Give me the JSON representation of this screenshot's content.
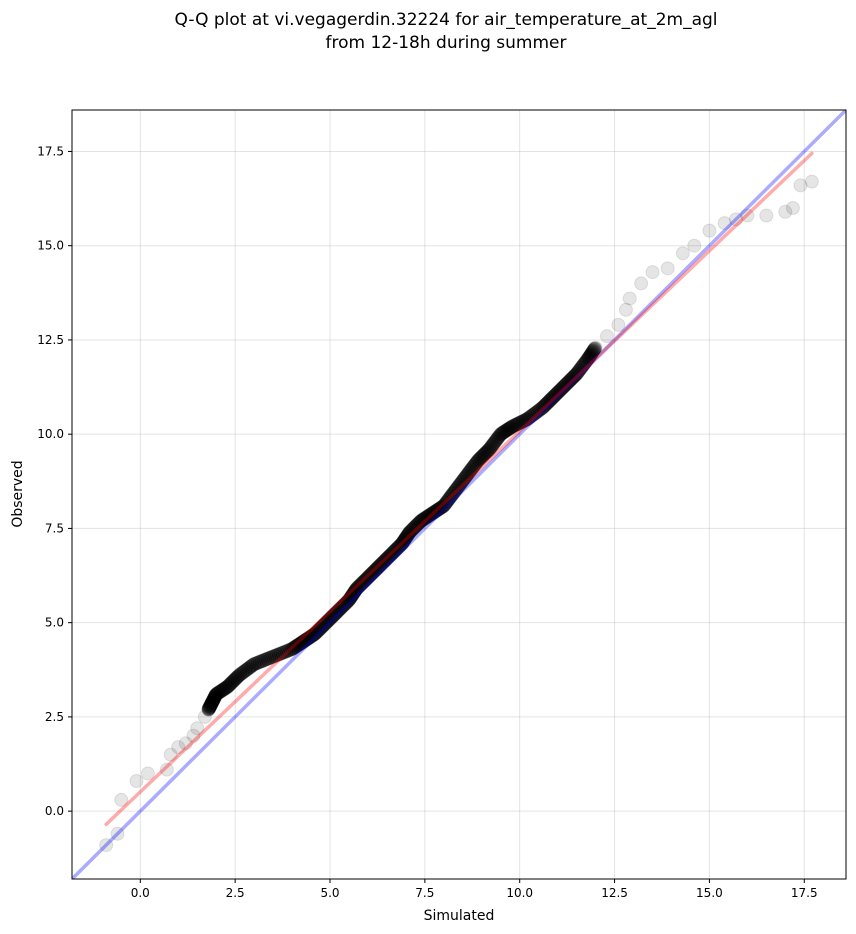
{
  "chart_data": {
    "type": "scatter",
    "title_lines": [
      "Q-Q plot at vi.vegagerdin.32224 for air_temperature_at_2m_agl",
      "from 12-18h during summer"
    ],
    "xlabel": "Simulated",
    "ylabel": "Observed",
    "xlim": [
      -1.8,
      18.6
    ],
    "ylim": [
      -1.8,
      18.6
    ],
    "x_ticks": [
      0.0,
      2.5,
      5.0,
      7.5,
      10.0,
      12.5,
      15.0,
      17.5
    ],
    "y_ticks": [
      0.0,
      2.5,
      5.0,
      7.5,
      10.0,
      12.5,
      15.0,
      17.5
    ],
    "x_tick_labels": [
      "0.0",
      "2.5",
      "5.0",
      "7.5",
      "10.0",
      "12.5",
      "15.0",
      "17.5"
    ],
    "y_tick_labels": [
      "0.0",
      "2.5",
      "5.0",
      "7.5",
      "10.0",
      "12.5",
      "15.0",
      "17.5"
    ],
    "grid": true,
    "marker_color": "#000000",
    "quantile_points": [
      [
        -0.9,
        -0.9
      ],
      [
        -0.6,
        -0.6
      ],
      [
        -0.5,
        0.3
      ],
      [
        -0.1,
        0.8
      ],
      [
        0.2,
        1.0
      ],
      [
        0.7,
        1.1
      ],
      [
        0.8,
        1.5
      ],
      [
        1.0,
        1.7
      ],
      [
        1.2,
        1.8
      ],
      [
        1.4,
        2.0
      ],
      [
        1.5,
        2.2
      ],
      [
        1.7,
        2.5
      ],
      [
        1.8,
        2.7
      ],
      [
        1.9,
        2.9
      ],
      [
        2.0,
        3.1
      ],
      [
        2.3,
        3.3
      ],
      [
        2.6,
        3.6
      ],
      [
        3.0,
        3.9
      ],
      [
        3.5,
        4.1
      ],
      [
        4.0,
        4.3
      ],
      [
        4.3,
        4.5
      ],
      [
        4.6,
        4.7
      ],
      [
        4.9,
        5.0
      ],
      [
        5.2,
        5.3
      ],
      [
        5.5,
        5.6
      ],
      [
        5.7,
        5.9
      ],
      [
        6.0,
        6.2
      ],
      [
        6.3,
        6.5
      ],
      [
        6.6,
        6.8
      ],
      [
        6.9,
        7.1
      ],
      [
        7.1,
        7.4
      ],
      [
        7.4,
        7.7
      ],
      [
        7.7,
        7.9
      ],
      [
        8.0,
        8.1
      ],
      [
        8.3,
        8.5
      ],
      [
        8.6,
        8.9
      ],
      [
        8.9,
        9.3
      ],
      [
        9.2,
        9.6
      ],
      [
        9.5,
        10.0
      ],
      [
        9.8,
        10.2
      ],
      [
        10.2,
        10.4
      ],
      [
        10.6,
        10.7
      ],
      [
        10.9,
        11.0
      ],
      [
        11.2,
        11.3
      ],
      [
        11.5,
        11.6
      ],
      [
        11.8,
        12.0
      ],
      [
        12.0,
        12.3
      ],
      [
        12.3,
        12.6
      ],
      [
        12.6,
        12.9
      ],
      [
        12.8,
        13.3
      ],
      [
        12.9,
        13.6
      ],
      [
        13.2,
        14.0
      ],
      [
        13.5,
        14.3
      ],
      [
        13.9,
        14.4
      ],
      [
        14.3,
        14.8
      ],
      [
        14.6,
        15.0
      ],
      [
        15.0,
        15.4
      ],
      [
        15.4,
        15.6
      ],
      [
        15.7,
        15.7
      ],
      [
        16.0,
        15.8
      ],
      [
        16.5,
        15.8
      ],
      [
        17.0,
        15.9
      ],
      [
        17.2,
        16.0
      ],
      [
        17.4,
        16.6
      ],
      [
        17.7,
        16.7
      ]
    ],
    "reference_lines": [
      {
        "kind": "identity line y = x",
        "color": "#0000ff",
        "opacity": 0.33,
        "x": [
          -1.8,
          18.6
        ],
        "y": [
          -1.8,
          18.6
        ]
      },
      {
        "kind": "fitted line",
        "color": "#ff0000",
        "opacity": 0.33,
        "x": [
          -0.9,
          17.7
        ],
        "y": [
          -0.35,
          17.45
        ]
      }
    ]
  }
}
